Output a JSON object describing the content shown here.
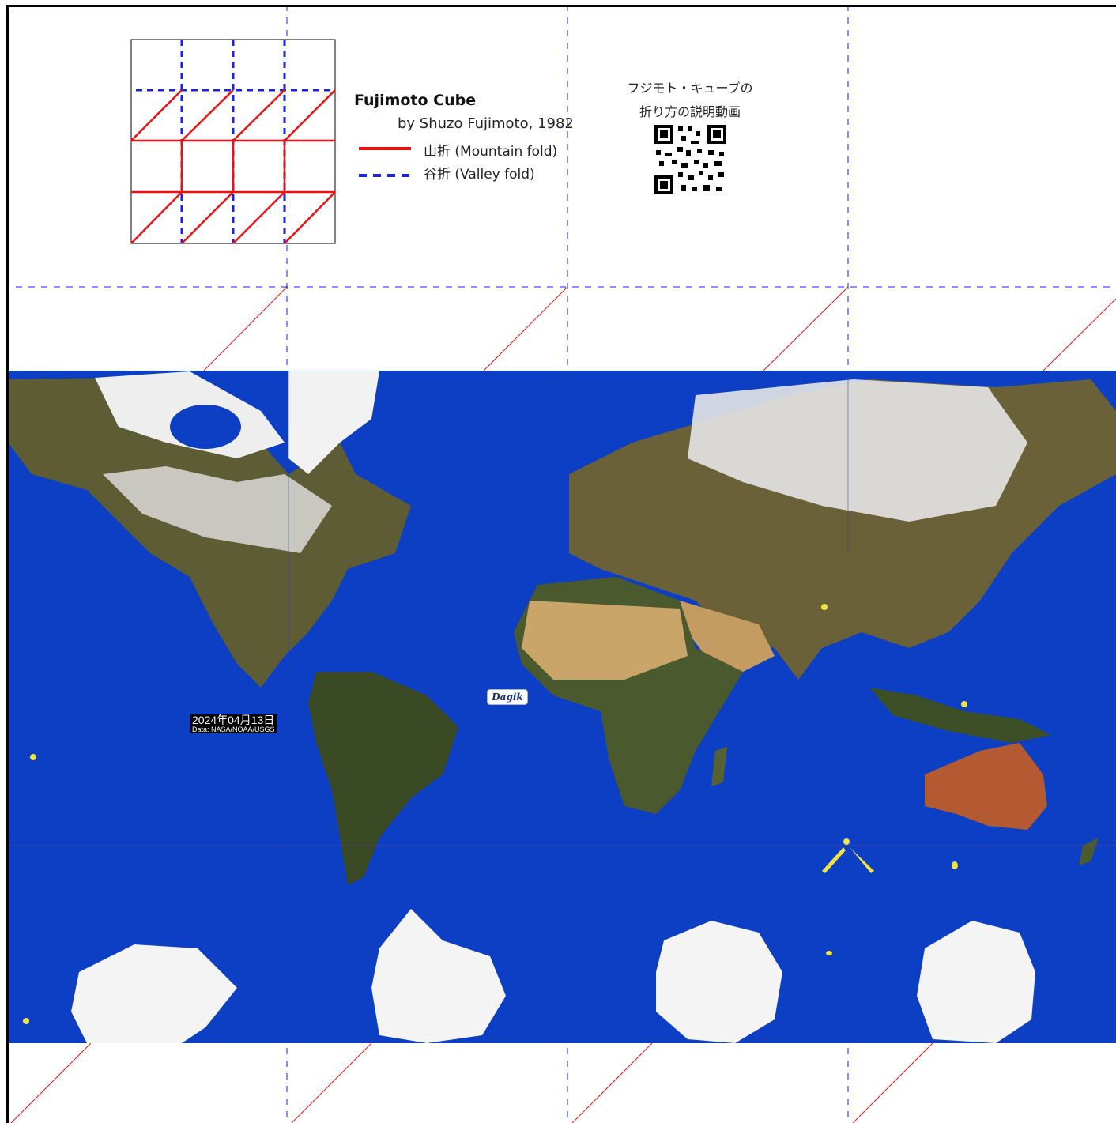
{
  "diagram": {
    "title": "Fujimoto Cube",
    "author": "by Shuzo Fujimoto, 1982",
    "legend": [
      {
        "label": "山折 (Mountain fold)",
        "style": "solid",
        "color": "#ee1111"
      },
      {
        "label": "谷折 (Valley fold)",
        "style": "dashed",
        "color": "#1a22dd"
      }
    ]
  },
  "qr": {
    "caption_line1": "フジモト・キューブの",
    "caption_line2": "折り方の説明動画"
  },
  "map": {
    "date": "2024年04月13日",
    "source": "Data: NASA/NOAA/USGS",
    "logo_text": "Dagik",
    "ocean_color": "#0c3fc4",
    "land_colors": [
      "#5b5a35",
      "#c9a56a",
      "#f2f2f2"
    ]
  },
  "fold_colors": {
    "mountain": "#ee1111",
    "valley": "#1a22dd"
  }
}
